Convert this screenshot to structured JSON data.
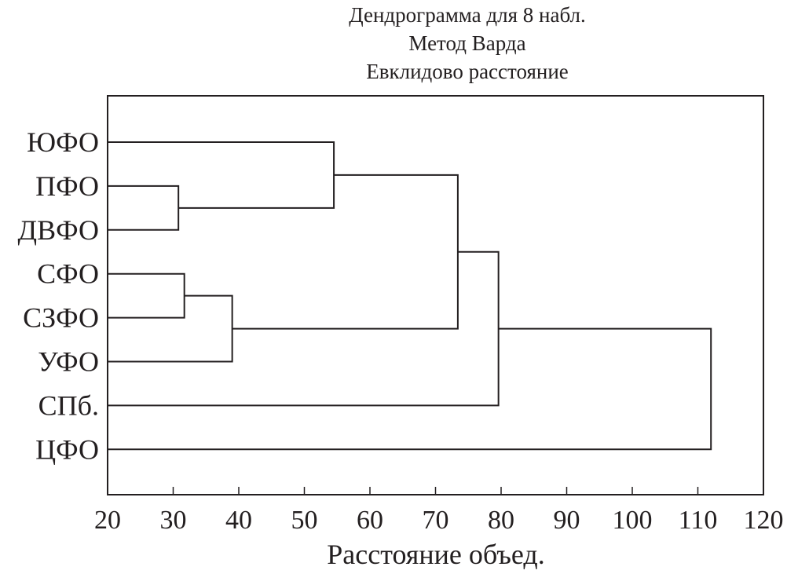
{
  "chart_data": {
    "type": "dendrogram",
    "title": [
      "Дендрограмма для 8 набл.",
      "Метод Варда",
      "Евклидово расстояние"
    ],
    "xlabel": "Расстояние объед.",
    "ylabel": "",
    "xlim": [
      20,
      120
    ],
    "xticks": [
      20,
      30,
      40,
      50,
      60,
      70,
      80,
      90,
      100,
      110,
      120
    ],
    "leaves": [
      "ЮФО",
      "ПФО",
      "ДВФО",
      "СФО",
      "СЗФО",
      "УФО",
      "СПб.",
      "ЦФО"
    ],
    "merges": [
      {
        "a": "ПФО",
        "b": "ДВФО",
        "id": "m1",
        "height": 30.8
      },
      {
        "a": "СФО",
        "b": "СЗФО",
        "id": "m2",
        "height": 31.7
      },
      {
        "a": "m2",
        "b": "УФО",
        "id": "m3",
        "height": 39.0
      },
      {
        "a": "ЮФО",
        "b": "m1",
        "id": "m4",
        "height": 54.5
      },
      {
        "a": "m4",
        "b": "m3",
        "id": "m5",
        "height": 73.4
      },
      {
        "a": "m5",
        "b": "СПб.",
        "id": "m6",
        "height": 79.6
      },
      {
        "a": "m6",
        "b": "ЦФО",
        "id": "m7",
        "height": 112.0
      }
    ],
    "grid": false,
    "colors": {
      "ink": "#231f20"
    }
  }
}
